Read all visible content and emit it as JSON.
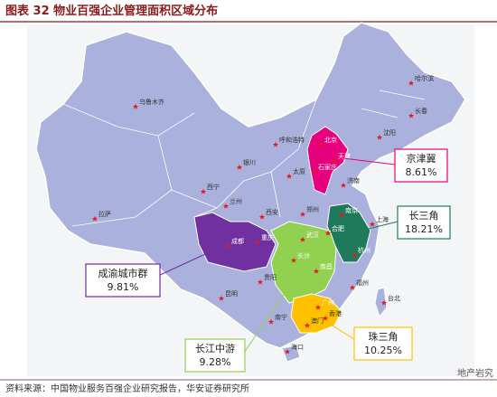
{
  "header": {
    "title": "图表 32 物业百强企业管理面积区域分布"
  },
  "regions": [
    {
      "name": "京津冀",
      "share": "8.61%"
    },
    {
      "name": "长三角",
      "share": "18.21%"
    },
    {
      "name": "成渝城市群",
      "share": "9.81%"
    },
    {
      "name": "长江中游",
      "share": "9.28%"
    },
    {
      "name": "珠三角",
      "share": "10.25%"
    }
  ],
  "cities": [
    "乌鲁木齐",
    "哈尔滨",
    "长春",
    "沈阳",
    "北京",
    "天津",
    "石家庄",
    "呼和浩特",
    "银川",
    "太原",
    "济南",
    "西宁",
    "兰州",
    "西安",
    "郑州",
    "南京",
    "上海",
    "合肥",
    "杭州",
    "武汉",
    "成都",
    "重庆",
    "长沙",
    "南昌",
    "福州",
    "台北",
    "贵阳",
    "昆明",
    "南宁",
    "广州",
    "澳门",
    "香港",
    "海口",
    "拉萨"
  ],
  "footer": {
    "source": "资料来源：中国物业服务百强企业研究报告，华安证券研究所",
    "watermark": "地产岩究"
  }
}
